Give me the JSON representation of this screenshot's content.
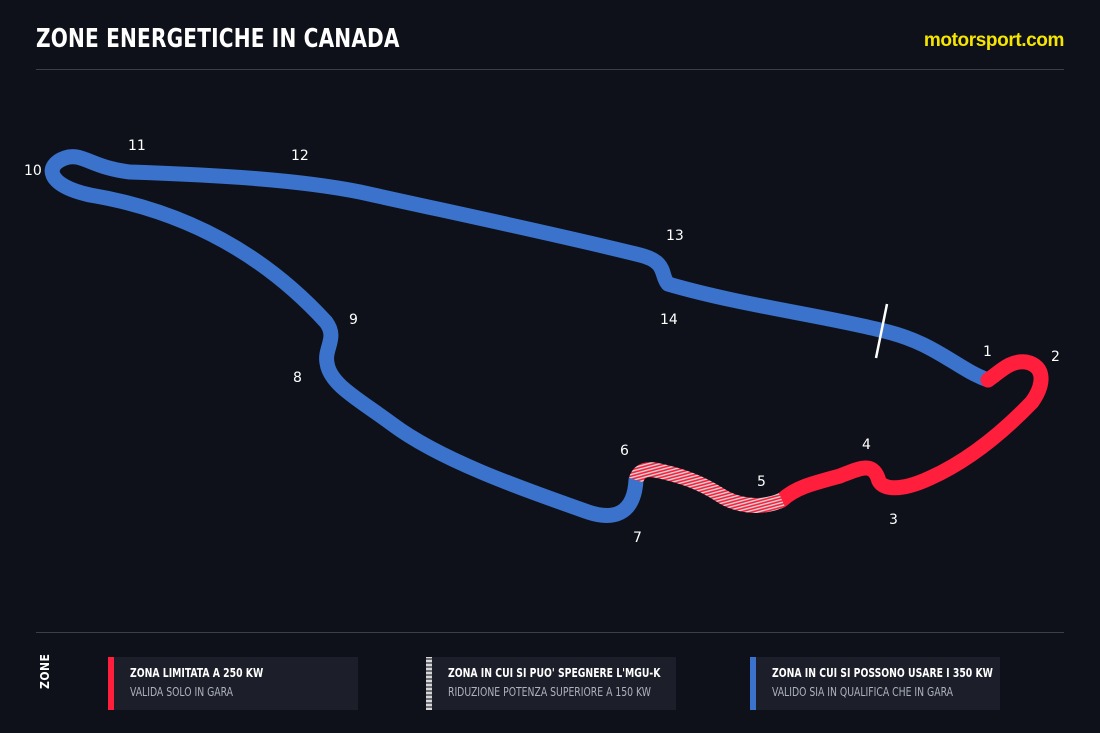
{
  "header": {
    "title": "ZONE ENERGETICHE IN CANADA",
    "brand": "motorsport.com"
  },
  "colors": {
    "background": "#0e111a",
    "limited_zone": "#ff1e3c",
    "mguk_zone": "#c9c9c9",
    "full_zone": "#3a72cc",
    "brand": "#f5e500"
  },
  "turns": [
    "1",
    "2",
    "3",
    "4",
    "5",
    "6",
    "7",
    "8",
    "9",
    "10",
    "11",
    "12",
    "13",
    "14"
  ],
  "legend": {
    "label": "ZONE",
    "items": [
      {
        "line1": "ZONA LIMITATA A 250 KW",
        "line2": "VALIDA SOLO IN GARA",
        "color": "#ff1e3c",
        "style": "solid"
      },
      {
        "line1": "ZONA IN CUI SI PUO' SPEGNERE L'MGU-K",
        "line2": "RIDUZIONE POTENZA SUPERIORE A 150 KW",
        "color": "#c9c9c9",
        "style": "striped"
      },
      {
        "line1": "ZONA IN CUI SI POSSONO USARE I 350 KW",
        "line2": "VALIDO SIA IN QUALIFICA CHE IN GARA",
        "color": "#3a72cc",
        "style": "solid"
      }
    ]
  }
}
